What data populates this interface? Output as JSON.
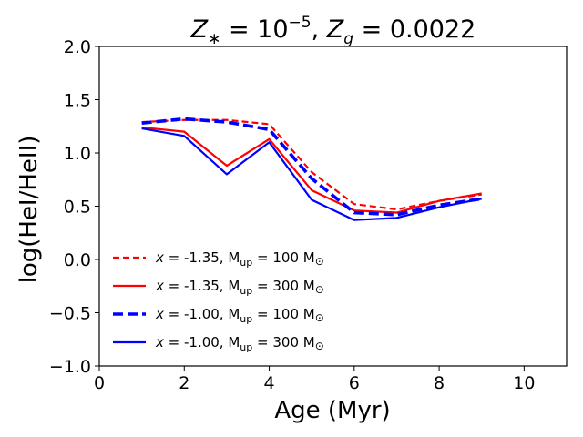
{
  "chart_data": {
    "type": "line",
    "title": "Z∗ = 10⁻⁵, Zg = 0.0022",
    "title_parts": {
      "z_star": "Z",
      "z_star_sub": "∗",
      "z_star_eq": " = 10",
      "z_star_exp": "−5",
      "sep": ", ",
      "z_g": "Z",
      "z_g_sub": "g",
      "z_g_eq": " = 0.0022"
    },
    "xlabel": "Age (Myr)",
    "ylabel": "log(HeI/HeII)",
    "xlim": [
      0,
      11
    ],
    "ylim": [
      -1.0,
      2.0
    ],
    "xticks": [
      0,
      2,
      4,
      6,
      8,
      10
    ],
    "xtick_labels": [
      "0",
      "2",
      "4",
      "6",
      "8",
      "10"
    ],
    "yticks": [
      -1.0,
      -0.5,
      0.0,
      0.5,
      1.0,
      1.5,
      2.0
    ],
    "ytick_labels": [
      "−1.0",
      "−0.5",
      "0.0",
      "0.5",
      "1.0",
      "1.5",
      "2.0"
    ],
    "x": [
      1,
      2,
      3,
      4,
      5,
      6,
      7,
      8,
      9
    ],
    "grid": false,
    "legend_location": "lower-left",
    "series": [
      {
        "name": "x = -1.35, Mup = 100 M⊙",
        "legend_parts": [
          "x",
          " = -1.35, M",
          "up",
          " = 100 M",
          "⊙"
        ],
        "color": "#ff0000",
        "style": "dashed",
        "weight": "normal",
        "values": [
          1.29,
          1.31,
          1.31,
          1.27,
          0.82,
          0.52,
          0.47,
          0.55,
          0.61
        ]
      },
      {
        "name": "x = -1.35, Mup = 300 M⊙",
        "legend_parts": [
          "x",
          " = -1.35, M",
          "up",
          " = 300 M",
          "⊙"
        ],
        "color": "#ff0000",
        "style": "solid",
        "weight": "normal",
        "values": [
          1.24,
          1.2,
          0.88,
          1.13,
          0.65,
          0.46,
          0.44,
          0.55,
          0.62
        ]
      },
      {
        "name": "x = -1.00, Mup = 100 M⊙",
        "legend_parts": [
          "x",
          " = -1.00, M",
          "up",
          " = 100 M",
          "⊙"
        ],
        "color": "#0000ff",
        "style": "dashed",
        "weight": "thick",
        "values": [
          1.28,
          1.32,
          1.29,
          1.22,
          0.76,
          0.44,
          0.42,
          0.51,
          0.57
        ]
      },
      {
        "name": "x = -1.00, Mup = 300 M⊙",
        "legend_parts": [
          "x",
          " = -1.00, M",
          "up",
          " = 300 M",
          "⊙"
        ],
        "color": "#0000ff",
        "style": "solid",
        "weight": "normal",
        "values": [
          1.23,
          1.16,
          0.8,
          1.1,
          0.56,
          0.37,
          0.39,
          0.49,
          0.57
        ]
      }
    ]
  }
}
